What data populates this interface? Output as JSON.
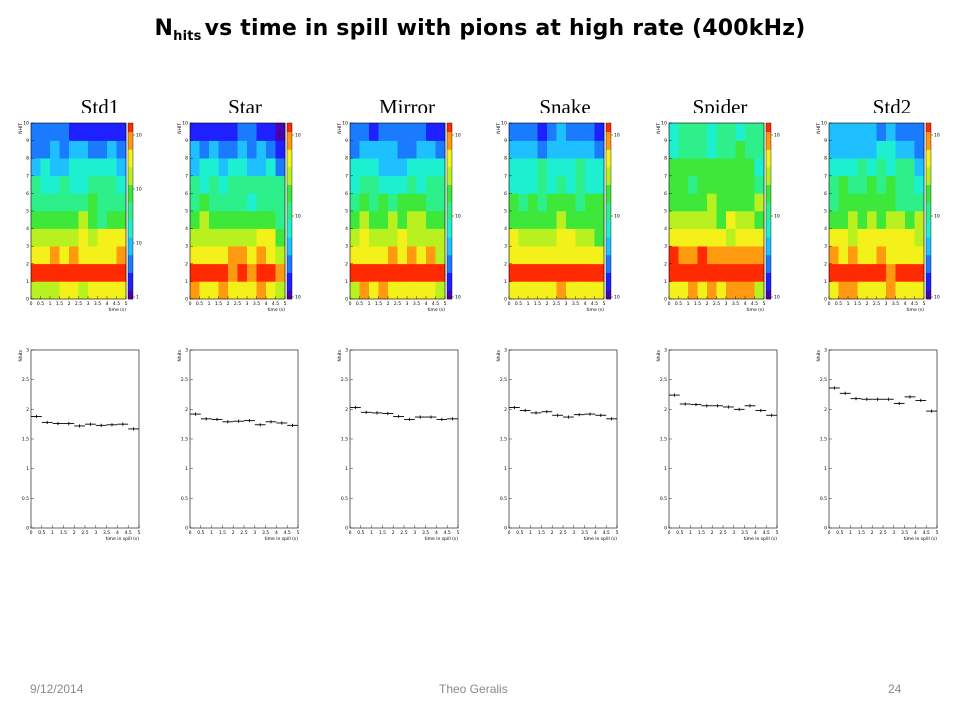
{
  "slide": {
    "title_main": "N",
    "title_sub": "hits",
    "title_rest": "vs time in spill with pions at high rate (400kHz)",
    "footer_date": "9/12/2014",
    "footer_author": "Theo Geralis",
    "footer_page": "24"
  },
  "chart_data": [
    {
      "type": "heatmap",
      "title": "Std1",
      "xlabel": "time (s)",
      "ylabel": "NHIT",
      "xlim": [
        0,
        5
      ],
      "ylim": [
        0,
        10
      ],
      "zlabels": [
        "10",
        "10",
        "10",
        "1"
      ],
      "x_ticks": [
        "0",
        "0.5",
        "1",
        "1.5",
        "2",
        "2.5",
        "3",
        "3.5",
        "4",
        "4.5",
        "5"
      ],
      "y_ticks": [
        "0",
        "1",
        "2",
        "3",
        "4",
        "5",
        "6",
        "7",
        "8",
        "9",
        "10"
      ]
    },
    {
      "type": "heatmap",
      "title": "Star",
      "xlabel": "time (s)",
      "ylabel": "NHIT",
      "xlim": [
        0,
        5
      ],
      "ylim": [
        0,
        10
      ],
      "zlabels": [
        "10",
        "10",
        "10"
      ],
      "x_ticks": [
        "0",
        "0.5",
        "1",
        "1.5",
        "2",
        "2.5",
        "3",
        "3.5",
        "4",
        "4.5",
        "5"
      ],
      "y_ticks": [
        "0",
        "1",
        "2",
        "3",
        "4",
        "5",
        "6",
        "7",
        "8",
        "9",
        "10"
      ]
    },
    {
      "type": "heatmap",
      "title": "Mirror",
      "xlabel": "time (s)",
      "ylabel": "NHIT",
      "xlim": [
        0,
        5
      ],
      "ylim": [
        0,
        10
      ],
      "zlabels": [
        "10",
        "10",
        "10"
      ],
      "x_ticks": [
        "0",
        "0.5",
        "1",
        "1.5",
        "2",
        "2.5",
        "3",
        "3.5",
        "4",
        "4.5",
        "5"
      ],
      "y_ticks": [
        "0",
        "1",
        "2",
        "3",
        "4",
        "5",
        "6",
        "7",
        "8",
        "9",
        "10"
      ]
    },
    {
      "type": "heatmap",
      "title": "Snake",
      "xlabel": "time (s)",
      "ylabel": "NHIT",
      "xlim": [
        0,
        5
      ],
      "ylim": [
        0,
        10
      ],
      "zlabels": [
        "10",
        "10",
        "10"
      ],
      "x_ticks": [
        "0",
        "0.5",
        "1",
        "1.5",
        "2",
        "2.5",
        "3",
        "3.5",
        "4",
        "4.5",
        "5"
      ],
      "y_ticks": [
        "0",
        "1",
        "2",
        "3",
        "4",
        "5",
        "6",
        "7",
        "8",
        "9",
        "10"
      ]
    },
    {
      "type": "heatmap",
      "title": "Spider",
      "xlabel": "time (s)",
      "ylabel": "NHIT",
      "xlim": [
        0,
        5
      ],
      "ylim": [
        0,
        10
      ],
      "zlabels": [
        "10",
        "10",
        "10"
      ],
      "x_ticks": [
        "0",
        "0.5",
        "1",
        "1.5",
        "2",
        "2.5",
        "3",
        "3.5",
        "4",
        "4.5",
        "5"
      ],
      "y_ticks": [
        "0",
        "1",
        "2",
        "3",
        "4",
        "5",
        "6",
        "7",
        "8",
        "9",
        "10"
      ]
    },
    {
      "type": "heatmap",
      "title": "Std2",
      "xlabel": "time (s)",
      "ylabel": "NHIT",
      "xlim": [
        0,
        5
      ],
      "ylim": [
        0,
        10
      ],
      "zlabels": [
        "10",
        "10",
        "10"
      ],
      "x_ticks": [
        "0",
        "0.5",
        "1",
        "1.5",
        "2",
        "2.5",
        "3",
        "3.5",
        "4",
        "4.5",
        "5"
      ],
      "y_ticks": [
        "0",
        "1",
        "2",
        "3",
        "4",
        "5",
        "6",
        "7",
        "8",
        "9",
        "10"
      ]
    },
    {
      "type": "scatter",
      "title": "Std1",
      "xlabel": "time in spill (s)",
      "ylabel": "Nhits",
      "xlim": [
        0,
        5
      ],
      "ylim": [
        0,
        3
      ],
      "x_ticks": [
        "0",
        "0.5",
        "1",
        "1.5",
        "2",
        "2.5",
        "3",
        "3.5",
        "4",
        "4.5",
        "5"
      ],
      "y_ticks": [
        "0",
        "0.5",
        "1",
        "1.5",
        "2",
        "2.5",
        "3"
      ],
      "x": [
        0.25,
        0.75,
        1.25,
        1.75,
        2.25,
        2.75,
        3.25,
        3.75,
        4.25,
        4.75
      ],
      "y": [
        1.88,
        1.78,
        1.76,
        1.76,
        1.72,
        1.75,
        1.73,
        1.74,
        1.75,
        1.67
      ]
    },
    {
      "type": "scatter",
      "title": "Star",
      "xlabel": "time in spill (s)",
      "ylabel": "Nhits",
      "xlim": [
        0,
        5
      ],
      "ylim": [
        0,
        3
      ],
      "x_ticks": [
        "0",
        "0.5",
        "1",
        "1.5",
        "2",
        "2.5",
        "3",
        "3.5",
        "4",
        "4.5",
        "5"
      ],
      "y_ticks": [
        "0",
        "0.5",
        "1",
        "1.5",
        "2",
        "2.5",
        "3"
      ],
      "x": [
        0.25,
        0.75,
        1.25,
        1.75,
        2.25,
        2.75,
        3.25,
        3.75,
        4.25,
        4.75
      ],
      "y": [
        1.92,
        1.84,
        1.83,
        1.79,
        1.8,
        1.81,
        1.74,
        1.79,
        1.77,
        1.73
      ]
    },
    {
      "type": "scatter",
      "title": "Mirror",
      "xlabel": "time in spill (s)",
      "ylabel": "Nhits",
      "xlim": [
        0,
        5
      ],
      "ylim": [
        0,
        3
      ],
      "x_ticks": [
        "0",
        "0.5",
        "1",
        "1.5",
        "2",
        "2.5",
        "3",
        "3.5",
        "4",
        "4.5",
        "5"
      ],
      "y_ticks": [
        "0",
        "0.5",
        "1",
        "1.5",
        "2",
        "2.5",
        "3"
      ],
      "x": [
        0.25,
        0.75,
        1.25,
        1.75,
        2.25,
        2.75,
        3.25,
        3.75,
        4.25,
        4.75
      ],
      "y": [
        2.03,
        1.95,
        1.94,
        1.93,
        1.88,
        1.83,
        1.87,
        1.87,
        1.83,
        1.84
      ]
    },
    {
      "type": "scatter",
      "title": "Snake",
      "xlabel": "time in spill (s)",
      "ylabel": "Nhits",
      "xlim": [
        0,
        5
      ],
      "ylim": [
        0,
        3
      ],
      "x_ticks": [
        "0",
        "0.5",
        "1",
        "1.5",
        "2",
        "2.5",
        "3",
        "3.5",
        "4",
        "4.5",
        "5"
      ],
      "y_ticks": [
        "0",
        "0.5",
        "1",
        "1.5",
        "2",
        "2.5",
        "3"
      ],
      "x": [
        0.25,
        0.75,
        1.25,
        1.75,
        2.25,
        2.75,
        3.25,
        3.75,
        4.25,
        4.75
      ],
      "y": [
        2.03,
        1.98,
        1.94,
        1.96,
        1.9,
        1.87,
        1.91,
        1.92,
        1.9,
        1.84
      ]
    },
    {
      "type": "scatter",
      "title": "Spider",
      "xlabel": "time in spill (s)",
      "ylabel": "Nhits",
      "xlim": [
        0,
        5
      ],
      "ylim": [
        0,
        3
      ],
      "x_ticks": [
        "0",
        "0.5",
        "1",
        "1.5",
        "2",
        "2.5",
        "3",
        "3.5",
        "4",
        "4.5",
        "5"
      ],
      "y_ticks": [
        "0",
        "0.5",
        "1",
        "1.5",
        "2",
        "2.5",
        "3"
      ],
      "x": [
        0.25,
        0.75,
        1.25,
        1.75,
        2.25,
        2.75,
        3.25,
        3.75,
        4.25,
        4.75
      ],
      "y": [
        2.24,
        2.09,
        2.08,
        2.06,
        2.06,
        2.04,
        2.0,
        2.06,
        1.98,
        1.9
      ]
    },
    {
      "type": "scatter",
      "title": "Std2",
      "xlabel": "time in spill (s)",
      "ylabel": "Nhits",
      "xlim": [
        0,
        5
      ],
      "ylim": [
        0,
        3
      ],
      "x_ticks": [
        "0",
        "0.5",
        "1",
        "1.5",
        "2",
        "2.5",
        "3",
        "3.5",
        "4",
        "4.5",
        "5"
      ],
      "y_ticks": [
        "0",
        "0.5",
        "1",
        "1.5",
        "2",
        "2.5",
        "3"
      ],
      "x": [
        0.25,
        0.75,
        1.25,
        1.75,
        2.25,
        2.75,
        3.25,
        3.75,
        4.25,
        4.75
      ],
      "y": [
        2.36,
        2.27,
        2.18,
        2.17,
        2.17,
        2.17,
        2.1,
        2.21,
        2.15,
        1.97
      ]
    }
  ]
}
